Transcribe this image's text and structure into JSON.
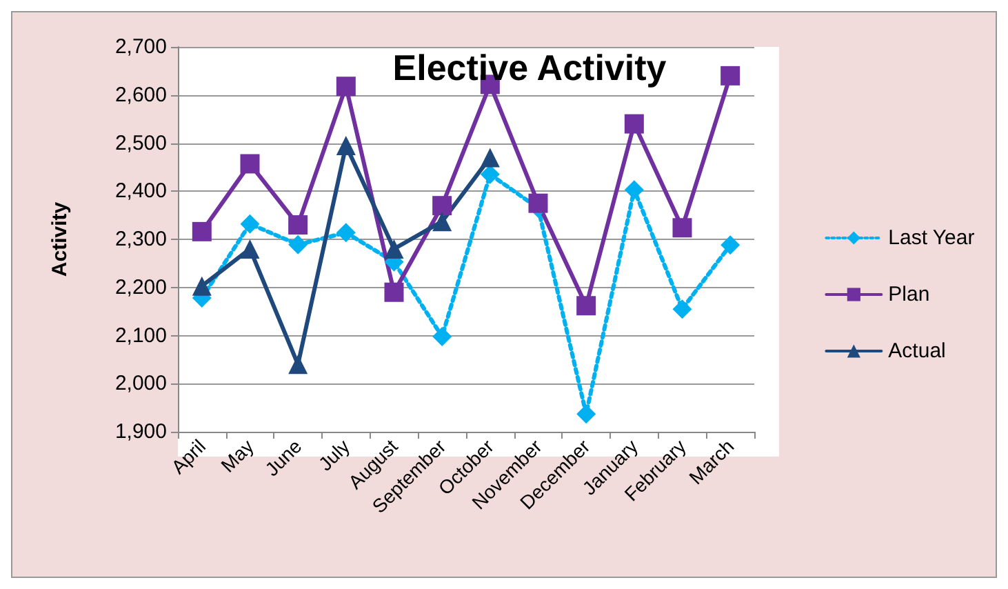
{
  "chart_data": {
    "type": "line",
    "title": "Elective Activity",
    "ylabel": "Activity",
    "categories": [
      "April",
      "May",
      "June",
      "July",
      "August",
      "September",
      "October",
      "November",
      "December",
      "January",
      "February",
      "March"
    ],
    "series": [
      {
        "name": "Last Year",
        "color": "#00b0f0",
        "marker": "diamond",
        "line_style": "dotted",
        "values": [
          2178,
          2332,
          2289,
          2314,
          2253,
          2098,
          2435,
          2365,
          1937,
          2403,
          2155,
          2288
        ]
      },
      {
        "name": "Plan",
        "color": "#7030a0",
        "marker": "square",
        "line_style": "solid",
        "values": [
          2316,
          2457,
          2330,
          2618,
          2190,
          2370,
          2622,
          2375,
          2162,
          2540,
          2324,
          2640
        ]
      },
      {
        "name": "Actual",
        "color": "#1f497d",
        "marker": "triangle",
        "line_style": "solid",
        "values": [
          2203,
          2280,
          2040,
          2495,
          2280,
          2337,
          2470,
          null,
          null,
          null,
          null,
          null
        ]
      }
    ],
    "ylim": [
      1900,
      2700
    ],
    "yticks": [
      {
        "value": 1900,
        "label": "1,900"
      },
      {
        "value": 2000,
        "label": "2,000"
      },
      {
        "value": 2100,
        "label": "2,100"
      },
      {
        "value": 2200,
        "label": "2,200"
      },
      {
        "value": 2300,
        "label": "2,300"
      },
      {
        "value": 2400,
        "label": "2,400"
      },
      {
        "value": 2500,
        "label": "2,500"
      },
      {
        "value": 2600,
        "label": "2,600"
      },
      {
        "value": 2700,
        "label": "2,700"
      }
    ],
    "grid": "y",
    "legend": "right"
  }
}
